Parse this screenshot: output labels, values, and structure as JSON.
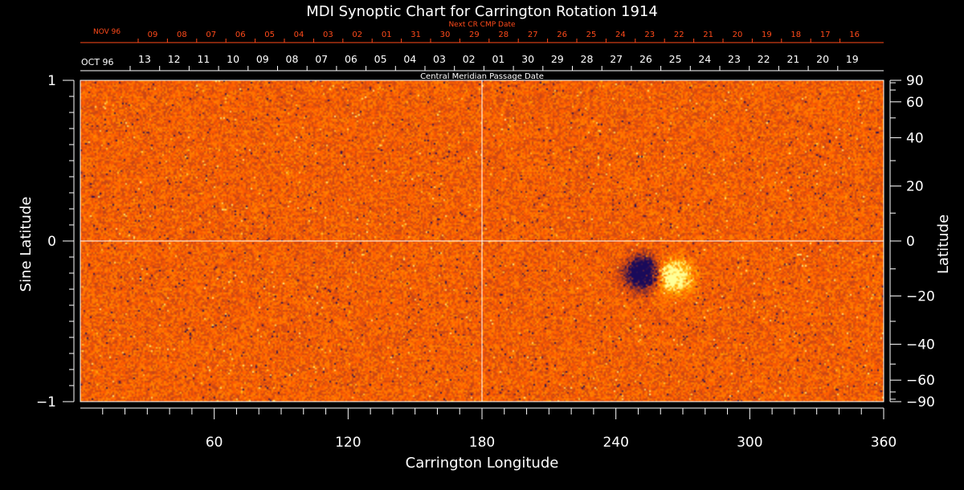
{
  "chart_data": {
    "type": "heatmap",
    "title": "MDI Synoptic Chart for Carrington Rotation 1914",
    "xlabel": "Carrington Longitude",
    "ylabel_left": "Sine Latitude",
    "ylabel_right": "Latitude",
    "xlim": [
      0,
      360
    ],
    "ylim": [
      -1,
      1
    ],
    "x_ticks": [
      60,
      120,
      180,
      240,
      300,
      360
    ],
    "y_ticks_left": [
      {
        "v": 1,
        "label": "1"
      },
      {
        "v": 0,
        "label": "0"
      },
      {
        "v": -1,
        "label": "−1"
      }
    ],
    "y_ticks_right_deg": [
      {
        "v": 90,
        "label": "90"
      },
      {
        "v": 60,
        "label": "60"
      },
      {
        "v": 40,
        "label": "40"
      },
      {
        "v": 20,
        "label": "20"
      },
      {
        "v": 0,
        "label": "0"
      },
      {
        "v": -20,
        "label": "−20"
      },
      {
        "v": -40,
        "label": "−40"
      },
      {
        "v": -60,
        "label": "−60"
      },
      {
        "v": -90,
        "label": "−90"
      }
    ],
    "cmp_axis": {
      "label": "Central Meridian Passage Date",
      "month_labels": [
        "OCT 96"
      ],
      "dates": [
        "13",
        "12",
        "11",
        "10",
        "09",
        "08",
        "07",
        "06",
        "05",
        "04",
        "03",
        "02",
        "01",
        "30",
        "29",
        "28",
        "27",
        "26",
        "25",
        "24",
        "23",
        "22",
        "21",
        "20",
        "19"
      ]
    },
    "next_cmp_axis": {
      "label": "Next CR CMP Date",
      "month_labels": [
        "NOV 96"
      ],
      "dates": [
        "09",
        "08",
        "07",
        "06",
        "05",
        "04",
        "03",
        "02",
        "01",
        "31",
        "30",
        "29",
        "28",
        "27",
        "26",
        "25",
        "24",
        "23",
        "22",
        "21",
        "20",
        "19",
        "18",
        "17",
        "16"
      ]
    },
    "active_regions": [
      {
        "lon": 252,
        "sinlat": -0.2,
        "polarity": "negative"
      },
      {
        "lon": 266,
        "sinlat": -0.22,
        "polarity": "positive"
      }
    ],
    "colors": {
      "background_field": "#ff5a00",
      "positive": "#fff6a0",
      "negative": "#1a0a5a",
      "axes": "#ffffff",
      "next_axis": "#ff4a1a"
    }
  }
}
